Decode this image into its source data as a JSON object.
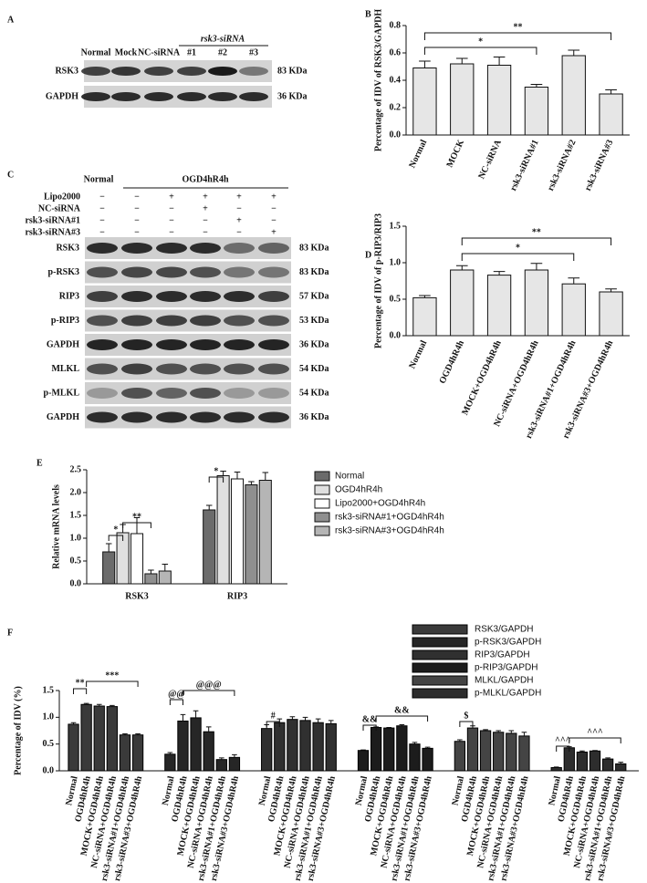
{
  "panel_labels": [
    "A",
    "B",
    "C",
    "D",
    "E",
    "F"
  ],
  "blot_a": {
    "lanes": [
      "Normal",
      "Mock",
      "NC-siRNA",
      "#1",
      "#2",
      "#3"
    ],
    "group_label": "rsk3-siRNA",
    "rows": [
      {
        "name": "RSK3",
        "size": "83 KDa"
      },
      {
        "name": "GAPDH",
        "size": "36 KDa"
      }
    ]
  },
  "blot_c": {
    "header": [
      "Normal",
      "OGD4hR4h"
    ],
    "treatments": [
      {
        "name": "Lipo2000",
        "signs": [
          "−",
          "−",
          "+",
          "+",
          "+",
          "+"
        ]
      },
      {
        "name": "NC-siRNA",
        "signs": [
          "−",
          "−",
          "−",
          "+",
          "−",
          "−"
        ]
      },
      {
        "name": "rsk3-siRNA#1",
        "signs": [
          "−",
          "−",
          "−",
          "−",
          "+",
          "−"
        ]
      },
      {
        "name": "rsk3-siRNA#3",
        "signs": [
          "−",
          "−",
          "−",
          "−",
          "−",
          "+"
        ]
      }
    ],
    "rows": [
      {
        "name": "RSK3",
        "size": "83 KDa"
      },
      {
        "name": "p-RSK3",
        "size": "83 KDa"
      },
      {
        "name": "RIP3",
        "size": "57 KDa"
      },
      {
        "name": "p-RIP3",
        "size": "53 KDa"
      },
      {
        "name": "GAPDH",
        "size": "36 KDa"
      },
      {
        "name": "MLKL",
        "size": "54 KDa"
      },
      {
        "name": "p-MLKL",
        "size": "54 KDa"
      },
      {
        "name": "GAPDH",
        "size": "36 KDa"
      }
    ]
  },
  "chart_data": [
    {
      "type": "bar",
      "y_label": "Percentage of IDV of RSK3/GAPDH",
      "categories": [
        "Normal",
        "MOCK",
        "NC-siRNA",
        "rsk3-siRNA#1",
        "rsk3-siRNA#2",
        "rsk3-siRNA#3"
      ],
      "values": [
        0.49,
        0.52,
        0.51,
        0.35,
        0.58,
        0.3
      ],
      "errors": [
        0.05,
        0.04,
        0.06,
        0.02,
        0.04,
        0.03
      ],
      "color": "#e6e6e6",
      "ylim": [
        0,
        0.8
      ],
      "yticks": [
        {
          "value": 0,
          "label": "0.0"
        },
        0.2,
        0.4,
        0.6,
        0.8
      ],
      "annotations": [
        "*",
        "**"
      ]
    },
    {
      "type": "bar",
      "y_label": "Percentage of IDV of p-RIP3/RIP3",
      "categories": [
        "Normal",
        "OGD4hR4h",
        "MOCK+OGD4hR4h",
        "NC-siRNA+OGD4hR4h",
        "rsk3-siRNA#1+OGD4hR4h",
        "rsk3-siRNA#3+OGD4hR4h"
      ],
      "values": [
        0.52,
        0.9,
        0.83,
        0.9,
        0.71,
        0.6
      ],
      "errors": [
        0.03,
        0.06,
        0.05,
        0.09,
        0.08,
        0.04
      ],
      "color": "#e6e6e6",
      "ylim": [
        0,
        1.5
      ],
      "yticks": [
        {
          "value": 0,
          "label": "0.0"
        },
        0.5,
        {
          "value": 1,
          "label": "1.0"
        },
        1.5
      ],
      "annotations": [
        "*",
        "**"
      ]
    },
    {
      "type": "grouped_bar",
      "y_label": "Relative mRNA levels",
      "categories": [
        "RSK3",
        "RIP3"
      ],
      "series": [
        {
          "name": "Normal",
          "color": "#6b6b6b",
          "values": [
            0.7,
            1.62
          ],
          "errors": [
            0.18,
            0.1
          ]
        },
        {
          "name": "OGD4hR4h",
          "color": "#e0e0e0",
          "values": [
            1.12,
            2.37
          ],
          "errors": [
            0.18,
            0.1
          ]
        },
        {
          "name": "Lipo2000+OGD4hR4h",
          "color": "#ffffff",
          "values": [
            1.1,
            2.3
          ],
          "errors": [
            0.35,
            0.15
          ]
        },
        {
          "name": "rsk3-siRNA#1+OGD4hR4h",
          "color": "#8f8f8f",
          "values": [
            0.22,
            2.17
          ],
          "errors": [
            0.08,
            0.07
          ]
        },
        {
          "name": "rsk3-siRNA#3+OGD4hR4h",
          "color": "#b5b5b5",
          "values": [
            0.28,
            2.27
          ],
          "errors": [
            0.15,
            0.17
          ]
        }
      ],
      "ylim": [
        0,
        2.5
      ],
      "yticks": [
        {
          "value": 0,
          "label": "0.0"
        },
        0.5,
        {
          "value": 1,
          "label": "1.0"
        },
        1.5,
        {
          "value": 2,
          "label": "2.0"
        },
        2.5
      ],
      "annotations": [
        "*",
        "**",
        "*"
      ]
    },
    {
      "type": "grouped_bar_by_series",
      "y_label": "Percentage of IDV (%)",
      "categories": [
        "Normal",
        "OGD4hR4h",
        "MOCK+OGD4hR4h",
        "NC-siRNA+OGD4hR4h",
        "rsk3-siRNA#1+OGD4hR4h",
        "rsk3-siRNA#3+OGD4hR4h"
      ],
      "series": [
        {
          "name": "RSK3/GAPDH",
          "color": "#3a3a3a",
          "values": [
            0.87,
            1.24,
            1.21,
            1.2,
            0.67,
            0.67
          ],
          "errors": [
            0.03,
            0.02,
            0.03,
            0.02,
            0.02,
            0.02
          ]
        },
        {
          "name": "p-RSK3/GAPDH",
          "color": "#262626",
          "values": [
            0.31,
            0.93,
            0.99,
            0.73,
            0.21,
            0.25
          ],
          "errors": [
            0.03,
            0.12,
            0.13,
            0.09,
            0.03,
            0.05
          ]
        },
        {
          "name": "RIP3/GAPDH",
          "color": "#303030",
          "values": [
            0.79,
            0.9,
            0.96,
            0.94,
            0.9,
            0.88
          ],
          "errors": [
            0.07,
            0.07,
            0.05,
            0.06,
            0.07,
            0.06
          ]
        },
        {
          "name": "p-RIP3/GAPDH",
          "color": "#1c1c1c",
          "values": [
            0.38,
            0.81,
            0.8,
            0.84,
            0.5,
            0.42
          ],
          "errors": [
            0.01,
            0.01,
            0.01,
            0.02,
            0.03,
            0.02
          ]
        },
        {
          "name": "MLKL/GAPDH",
          "color": "#444444",
          "values": [
            0.55,
            0.8,
            0.75,
            0.72,
            0.7,
            0.65
          ],
          "errors": [
            0.03,
            0.04,
            0.02,
            0.03,
            0.05,
            0.07
          ]
        },
        {
          "name": "p-MLKL/GAPDH",
          "color": "#2d2d2d",
          "values": [
            0.06,
            0.43,
            0.35,
            0.37,
            0.22,
            0.13
          ],
          "errors": [
            0.01,
            0.02,
            0.02,
            0.01,
            0.02,
            0.03
          ]
        }
      ],
      "ylim": [
        0,
        1.5
      ],
      "yticks": [
        {
          "value": 0,
          "label": "0.0"
        },
        0.5,
        {
          "value": 1,
          "label": "1.0"
        },
        1.5
      ],
      "annotations": [
        "**",
        "***",
        "@@",
        "@@@",
        "#",
        "&&",
        "&&",
        "$",
        "^^^",
        "^^^"
      ]
    }
  ]
}
